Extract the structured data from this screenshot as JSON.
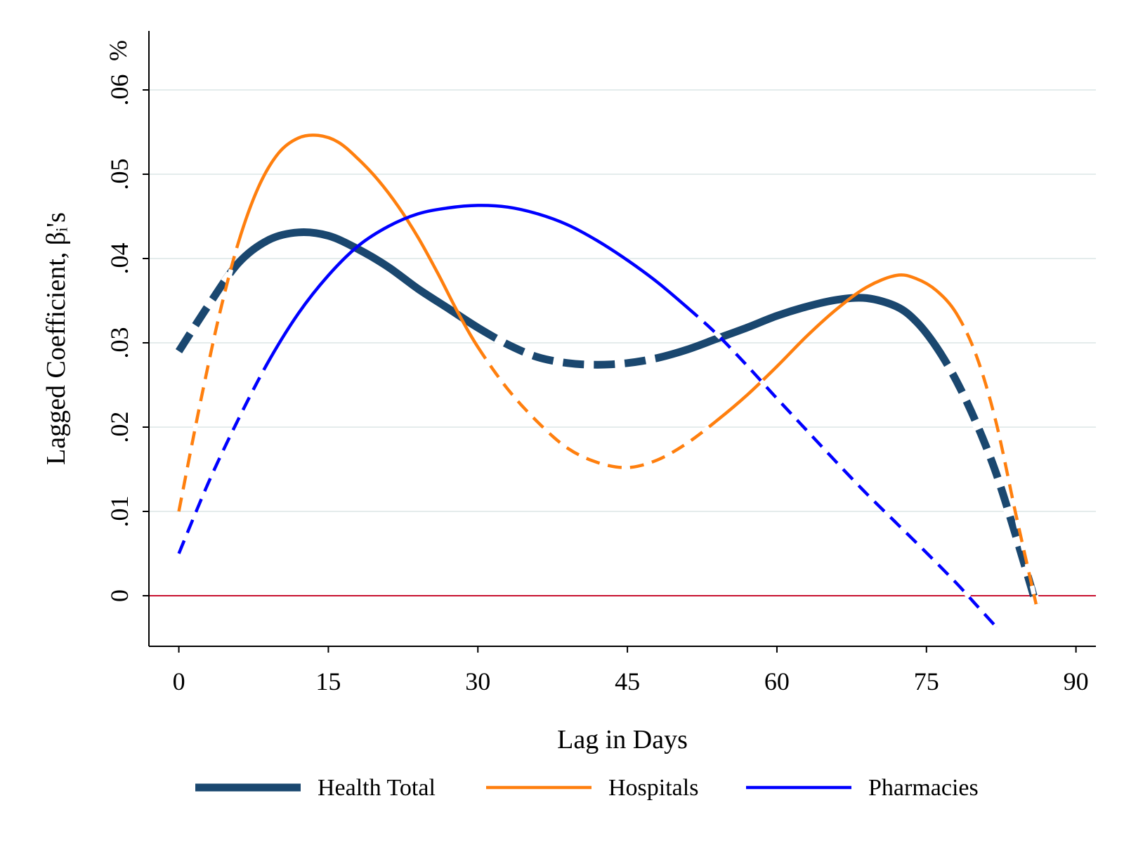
{
  "chart_data": {
    "type": "line",
    "xlabel": "Lag in Days",
    "ylabel": "Lagged Coefficient, βᵢ's",
    "y_unit": "%",
    "xlim": [
      -3,
      92
    ],
    "ylim": [
      -0.006,
      0.067
    ],
    "x_ticks": [
      0,
      15,
      30,
      45,
      60,
      75,
      90
    ],
    "x_tick_labels": [
      "0",
      "15",
      "30",
      "45",
      "60",
      "75",
      "90"
    ],
    "y_ticks": [
      0,
      0.01,
      0.02,
      0.03,
      0.04,
      0.05,
      0.06
    ],
    "y_tick_labels": [
      "0",
      ".01",
      ".02",
      ".03",
      ".04",
      ".05",
      ".06"
    ],
    "grid": true,
    "reference_line": {
      "y": 0,
      "color": "#c8102e"
    },
    "legend": {
      "position": "bottom"
    },
    "series": [
      {
        "name": "Health Total",
        "color": "#1a476f",
        "style": "thick",
        "x": [
          0,
          3,
          6,
          9,
          12,
          15,
          18,
          21,
          24,
          27,
          30,
          33,
          36,
          39,
          42,
          45,
          48,
          51,
          54,
          57,
          60,
          63,
          66,
          69,
          72,
          74,
          76,
          78,
          80,
          82,
          84,
          86
        ],
        "y": [
          0.029,
          0.0345,
          0.0395,
          0.0422,
          0.0431,
          0.0427,
          0.0411,
          0.039,
          0.0364,
          0.0341,
          0.0318,
          0.0298,
          0.0283,
          0.0276,
          0.0274,
          0.0276,
          0.0282,
          0.0292,
          0.0305,
          0.0318,
          0.0332,
          0.0343,
          0.0351,
          0.0353,
          0.0343,
          0.0325,
          0.0295,
          0.0255,
          0.0205,
          0.0145,
          0.007,
          -0.001
        ],
        "dashed_ranges": [
          [
            0,
            6
          ],
          [
            29,
            50
          ],
          [
            76,
            86
          ]
        ]
      },
      {
        "name": "Hospitals",
        "color": "#ff7f0e",
        "style": "medium",
        "x": [
          0,
          2,
          4,
          6,
          8,
          10,
          12,
          14,
          16,
          18,
          20,
          22,
          24,
          26,
          28,
          30,
          33,
          36,
          39,
          42,
          45,
          48,
          51,
          54,
          57,
          60,
          63,
          66,
          69,
          72,
          74,
          76,
          78,
          80,
          82,
          84,
          86
        ],
        "y": [
          0.01,
          0.022,
          0.033,
          0.042,
          0.0485,
          0.0525,
          0.0543,
          0.0546,
          0.0538,
          0.0518,
          0.0493,
          0.0462,
          0.0425,
          0.0382,
          0.0336,
          0.0295,
          0.0245,
          0.0206,
          0.0175,
          0.0158,
          0.0152,
          0.0161,
          0.0181,
          0.0208,
          0.0238,
          0.0272,
          0.0308,
          0.034,
          0.0366,
          0.038,
          0.0376,
          0.0362,
          0.0335,
          0.0285,
          0.0205,
          0.0095,
          -0.001
        ],
        "dashed_ranges": [
          [
            0,
            6
          ],
          [
            29,
            56
          ],
          [
            77,
            86
          ]
        ]
      },
      {
        "name": "Pharmacies",
        "color": "#0000ff",
        "style": "medium",
        "x": [
          0,
          3,
          6,
          9,
          12,
          15,
          18,
          21,
          24,
          27,
          30,
          33,
          36,
          39,
          42,
          45,
          48,
          51,
          54,
          57,
          60,
          63,
          66,
          69,
          72,
          75,
          78,
          80,
          82
        ],
        "y": [
          0.005,
          0.0135,
          0.021,
          0.0278,
          0.0335,
          0.038,
          0.0415,
          0.0438,
          0.0453,
          0.046,
          0.0463,
          0.0461,
          0.0453,
          0.044,
          0.0421,
          0.0398,
          0.0372,
          0.0342,
          0.031,
          0.0273,
          0.0234,
          0.0196,
          0.0158,
          0.0121,
          0.0086,
          0.0051,
          0.0015,
          -0.0011,
          -0.0037
        ],
        "dashed_ranges": [
          [
            0,
            10
          ],
          [
            50,
            82
          ]
        ]
      }
    ]
  }
}
